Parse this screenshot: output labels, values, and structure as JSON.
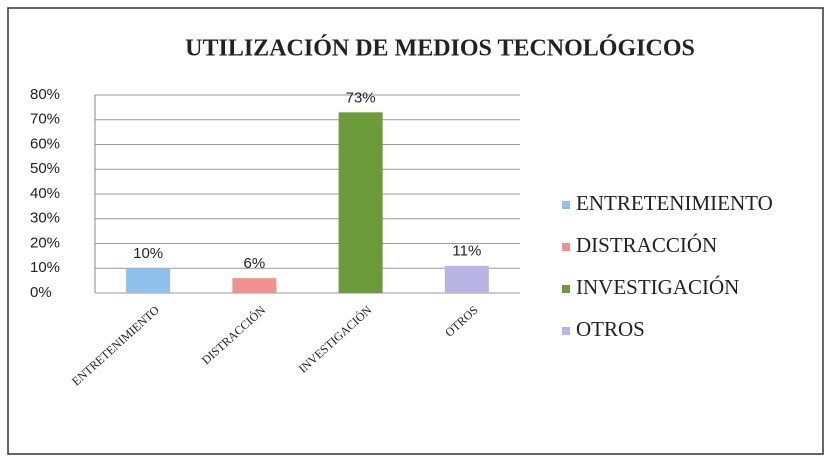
{
  "chart_data": {
    "type": "bar",
    "title": "UTILIZACIÓN  DE MEDIOS TECNOLÓGICOS",
    "categories": [
      "ENTRETENIMIENTO",
      "DISTRACCIÓN",
      "INVESTIGACIÓN",
      "OTROS"
    ],
    "values": [
      10,
      6,
      73,
      11
    ],
    "value_labels": [
      "10%",
      "6%",
      "73%",
      "11%"
    ],
    "colors": [
      "#8fc1ec",
      "#f0918f",
      "#6b9b3a",
      "#bab4e4"
    ],
    "ylim": [
      0,
      80
    ],
    "yticks": [
      {
        "value": 0,
        "label": "0%"
      },
      {
        "value": 10,
        "label": "10%"
      },
      {
        "value": 20,
        "label": "20%"
      },
      {
        "value": 30,
        "label": "30%"
      },
      {
        "value": 40,
        "label": "40%"
      },
      {
        "value": 50,
        "label": "50%"
      },
      {
        "value": 60,
        "label": "60%"
      },
      {
        "value": 70,
        "label": "70%"
      },
      {
        "value": 80,
        "label": "80%"
      }
    ],
    "grid": true,
    "legend": "right"
  }
}
